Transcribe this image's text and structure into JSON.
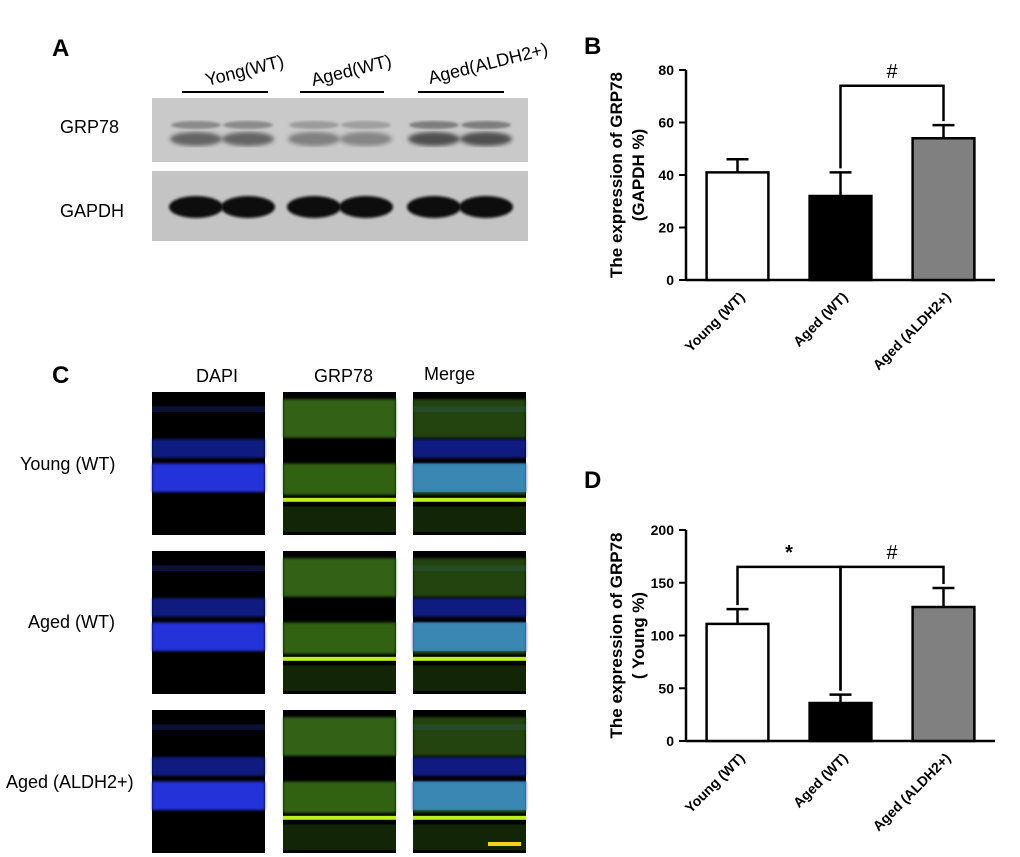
{
  "panel_a": {
    "letter": "A",
    "groups": [
      "Yong(WT)",
      "Aged(WT)",
      "Aged(ALDH2+)"
    ],
    "rows": [
      "GRP78",
      "GAPDH"
    ]
  },
  "panel_c": {
    "letter": "C",
    "columns": [
      "DAPI",
      "GRP78",
      "Merge"
    ],
    "rows": [
      "Young (WT)",
      "Aged (WT)",
      "Aged (ALDH2+)"
    ]
  },
  "chart_data": [
    {
      "panel": "B",
      "type": "bar",
      "categories": [
        "Young (WT)",
        "Aged (WT)",
        "Aged (ALDH2+)"
      ],
      "values": [
        41,
        32,
        54
      ],
      "errors": [
        5,
        9,
        5
      ],
      "bar_colors": [
        "#ffffff",
        "#000000",
        "#808080"
      ],
      "ylabel": [
        "The expression of GRP78",
        "(GAPDH %)"
      ],
      "ylim": [
        0,
        80
      ],
      "yticks": [
        0,
        20,
        40,
        60,
        80
      ],
      "significance": [
        {
          "from": 1,
          "to": 2,
          "label": "#",
          "level": 74
        }
      ]
    },
    {
      "panel": "D",
      "type": "bar",
      "categories": [
        "Young (WT)",
        "Aged (WT)",
        "Aged (ALDH2+)"
      ],
      "values": [
        111,
        36,
        127
      ],
      "errors": [
        14,
        8,
        18
      ],
      "bar_colors": [
        "#ffffff",
        "#000000",
        "#808080"
      ],
      "ylabel": [
        "The expression of GRP78",
        "( Young %)"
      ],
      "ylim": [
        0,
        200
      ],
      "yticks": [
        0,
        50,
        100,
        150,
        200
      ],
      "significance": [
        {
          "from": 0,
          "to": 1,
          "label": "*",
          "level": 165
        },
        {
          "from": 1,
          "to": 2,
          "label": "#",
          "level": 165
        }
      ]
    }
  ]
}
